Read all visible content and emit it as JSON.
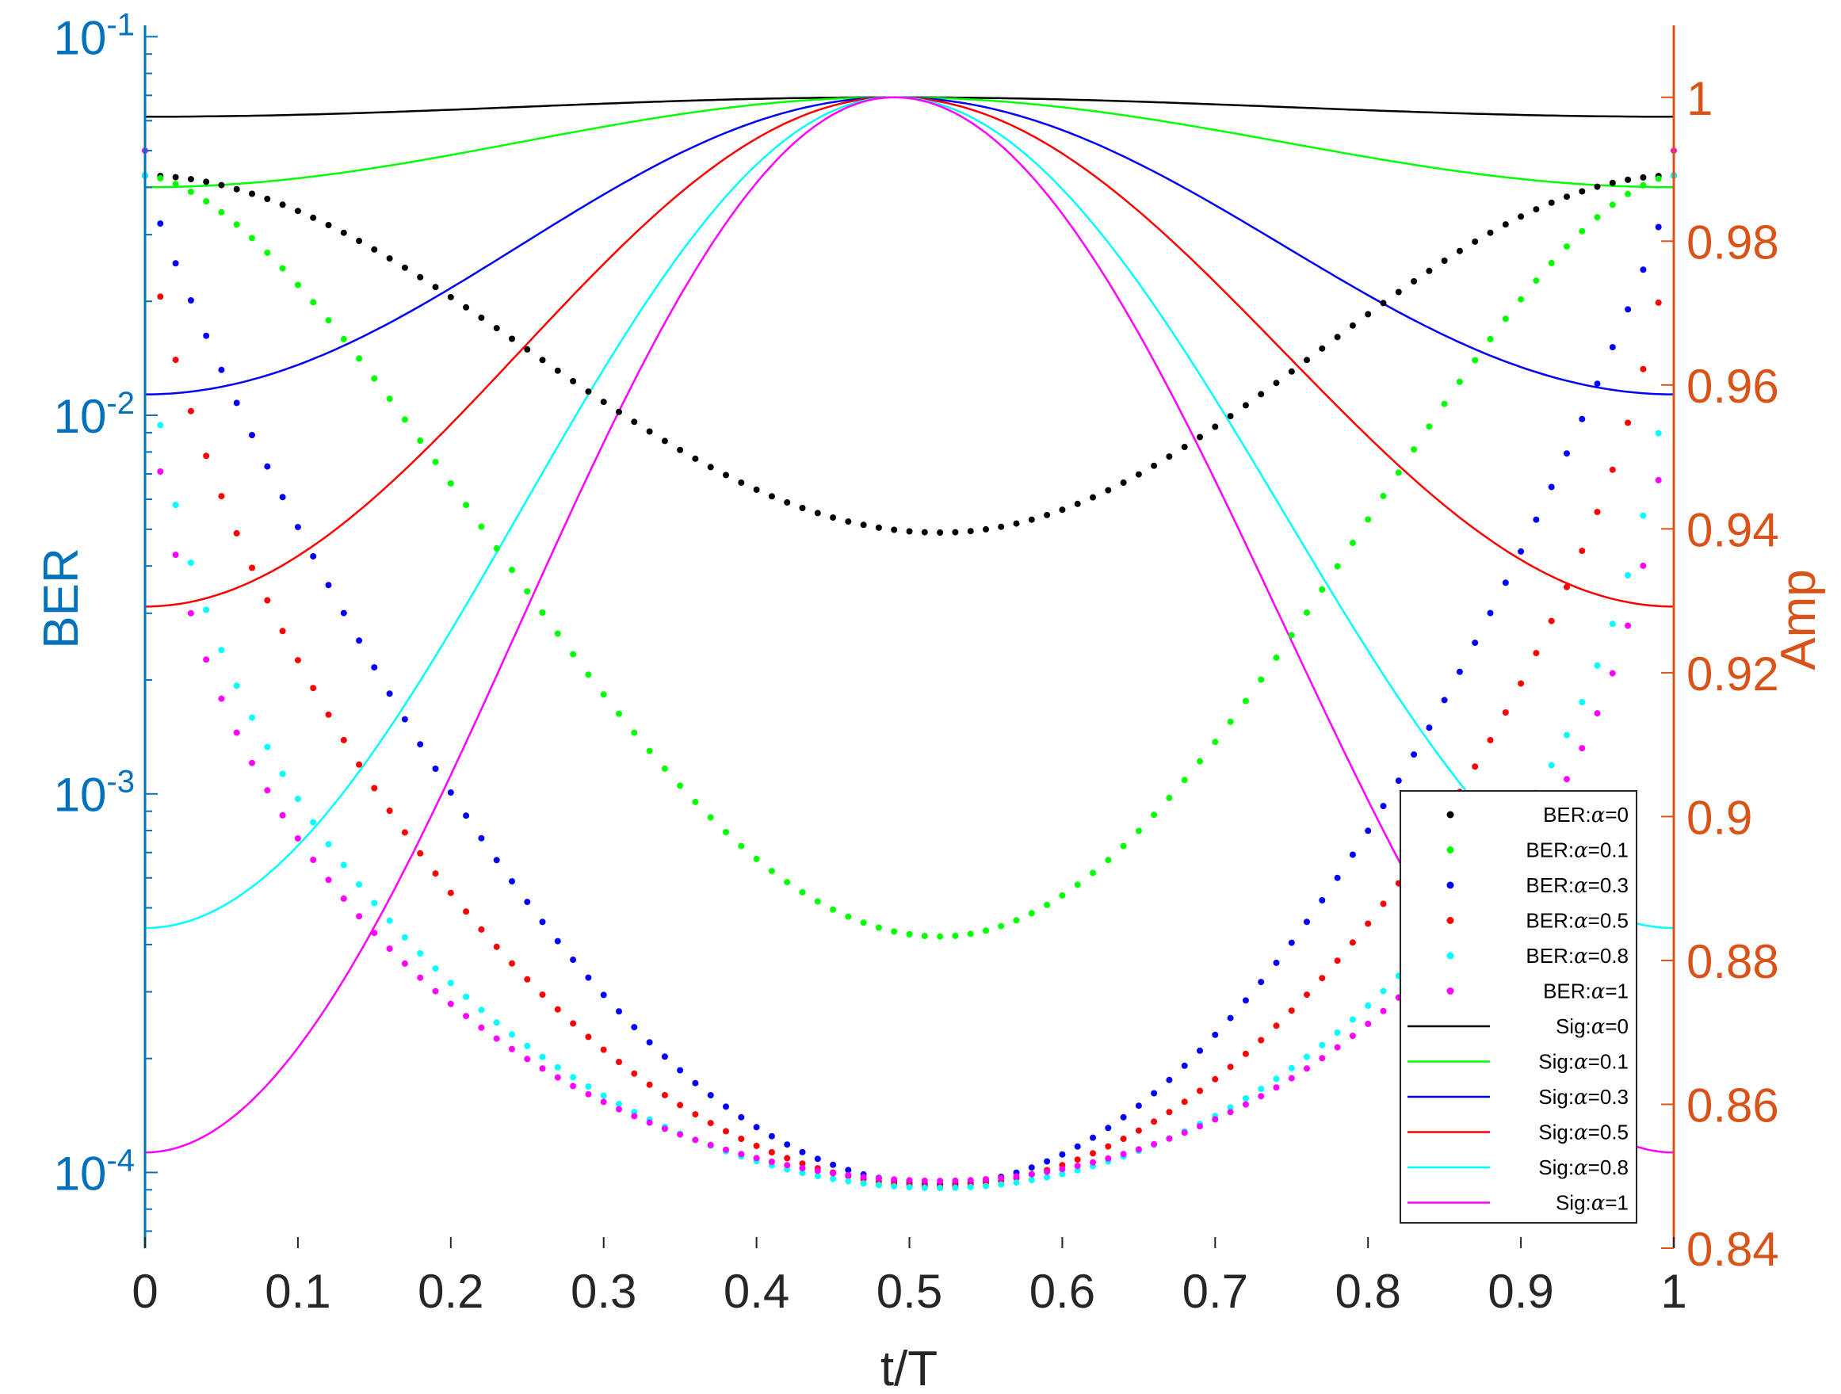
{
  "chart_data": {
    "type": "line",
    "xlabel": "t/T",
    "ylabel_left": "BER",
    "ylabel_right": "Amp",
    "x_range": [
      0,
      1
    ],
    "y_left_range_log10": [
      -4.2,
      -0.97
    ],
    "y_right_range": [
      0.84,
      1.01
    ],
    "x_ticks": [
      "0",
      "0.1",
      "0.2",
      "0.3",
      "0.4",
      "0.5",
      "0.6",
      "0.7",
      "0.8",
      "0.9",
      "1"
    ],
    "y_left_ticks": [
      {
        "exp": -1,
        "base": "10",
        "sup": "-1"
      },
      {
        "exp": -2,
        "base": "10",
        "sup": "-2"
      },
      {
        "exp": -3,
        "base": "10",
        "sup": "-3"
      },
      {
        "exp": -4,
        "base": "10",
        "sup": "-4"
      }
    ],
    "y_right_ticks": [
      "0.84",
      "0.86",
      "0.88",
      "0.9",
      "0.92",
      "0.94",
      "0.96",
      "0.98",
      "1"
    ],
    "colors": {
      "left_axis": "#0072BD",
      "right_axis": "#D95319",
      "x_axis": "#262626"
    },
    "ber_series": [
      {
        "name": "BER:α=0",
        "label_prefix": "BER:",
        "alpha_value": "0",
        "color": "#000000",
        "edge": 0.043,
        "floor": 0.0049,
        "power": 1.05
      },
      {
        "name": "BER:α=0.1",
        "label_prefix": "BER:",
        "alpha_value": "0.1",
        "color": "#00FF00",
        "edge": 0.043,
        "floor": 0.00042,
        "power": 1.25
      },
      {
        "name": "BER:α=0.3",
        "label_prefix": "BER:",
        "alpha_value": "0.3",
        "color": "#0000FF",
        "edge": 0.043,
        "floor": 9.3e-05,
        "power": 2.3
      },
      {
        "name": "BER:α=0.5",
        "label_prefix": "BER:",
        "alpha_value": "0.5",
        "color": "#FF0000",
        "edge": 0.043,
        "floor": 9.2e-05,
        "power": 3.3
      },
      {
        "name": "BER:α=0.8",
        "label_prefix": "BER:",
        "alpha_value": "0.8",
        "color": "#00FFFF",
        "edge": 0.043,
        "floor": 9.1e-05,
        "power": 5.0
      },
      {
        "name": "BER:α=1",
        "label_prefix": "BER:",
        "alpha_value": "1",
        "color": "#FF00FF",
        "edge": 0.05,
        "floor": 9.5e-05,
        "power": 6.0
      }
    ],
    "sig_series": [
      {
        "name": "Sig:α=0",
        "label_prefix": "Sig:",
        "alpha_value": "0",
        "color": "#000000",
        "edge_amp": 0.9973
      },
      {
        "name": "Sig:α=0.1",
        "label_prefix": "Sig:",
        "alpha_value": "0.1",
        "color": "#00FF00",
        "edge_amp": 0.9875
      },
      {
        "name": "Sig:α=0.3",
        "label_prefix": "Sig:",
        "alpha_value": "0.3",
        "color": "#0000FF",
        "edge_amp": 0.9587
      },
      {
        "name": "Sig:α=0.5",
        "label_prefix": "Sig:",
        "alpha_value": "0.5",
        "color": "#FF0000",
        "edge_amp": 0.9292
      },
      {
        "name": "Sig:α=0.8",
        "label_prefix": "Sig:",
        "alpha_value": "0.8",
        "color": "#00FFFF",
        "edge_amp": 0.8845
      },
      {
        "name": "Sig:α=1",
        "label_prefix": "Sig:",
        "alpha_value": "1",
        "color": "#FF00FF",
        "edge_amp": 0.8533
      }
    ],
    "peak_x": 0.49,
    "ber_min_x": 0.52,
    "legend_position": "bottom-right",
    "grid": false
  }
}
